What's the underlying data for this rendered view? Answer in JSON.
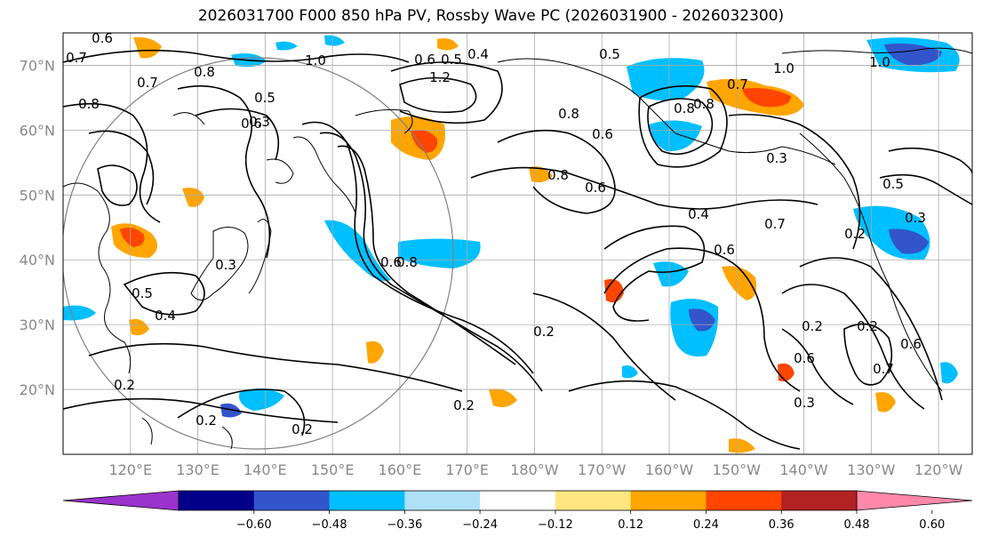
{
  "title": "2026031700 F000 850 hPa PV, Rossby Wave PC (2026031900 - 2026032300)",
  "map": {
    "lat_labels": [
      "70°N",
      "60°N",
      "50°N",
      "40°N",
      "30°N",
      "20°N"
    ],
    "lat_values": [
      70,
      60,
      50,
      40,
      30,
      20
    ],
    "lon_labels": [
      "120°E",
      "130°E",
      "140°E",
      "150°E",
      "160°E",
      "170°E",
      "180°W",
      "170°W",
      "160°W",
      "150°W",
      "140°W",
      "130°W",
      "120°W"
    ],
    "lat_range": [
      10,
      75
    ],
    "lon_range": [
      110,
      245
    ],
    "grid": true,
    "contour_labels": [
      "0.6",
      "0.7",
      "0.8",
      "0.7",
      "0.8",
      "0.5",
      "0.6",
      "1.0",
      "0.4",
      "0.6",
      "0.5",
      "1.2",
      "0.5",
      "1.0",
      "0.7",
      "0.8",
      "1.0",
      "0.8",
      "0.6",
      "0.3",
      "0.8",
      "0.6",
      "0.4",
      "0.6",
      "0.7",
      "0.5",
      "0.3",
      "0.2",
      "0.3",
      "0.5",
      "0.4",
      "0.2",
      "0.2",
      "0.2",
      "0.2",
      "0.2",
      "0.6",
      "0.7",
      "0.6",
      "0.2",
      "0.3",
      "0.2",
      "0.3",
      "0.6",
      "0.8",
      "0.8"
    ]
  },
  "colorbar": {
    "ticks": [
      "−0.60",
      "−0.48",
      "−0.36",
      "−0.24",
      "−0.12",
      "0.12",
      "0.24",
      "0.36",
      "0.48",
      "0.60"
    ],
    "colors": [
      "#9933cc",
      "#00008b",
      "#3355cc",
      "#00bfff",
      "#aee0f8",
      "#ffffff",
      "#ffe680",
      "#ffa500",
      "#ff4500",
      "#b22222",
      "#ff88aa"
    ]
  },
  "colors": {
    "contour": "#000000",
    "coast": "#000000",
    "grid": "#aaaaaa",
    "circle": "#808080"
  }
}
